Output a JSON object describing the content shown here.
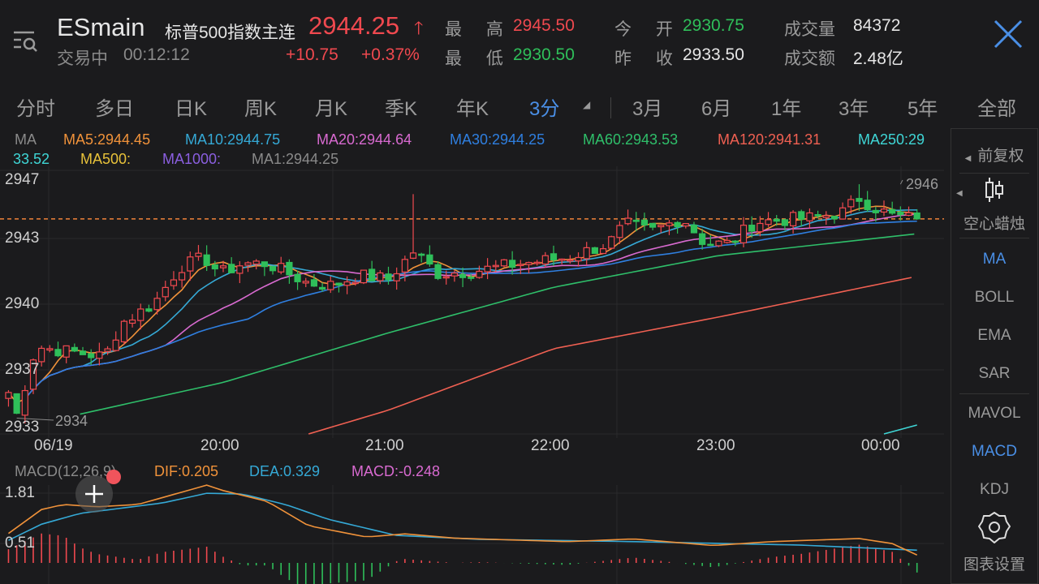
{
  "header": {
    "symbol": "ESmain",
    "name": "标普500指数主连",
    "status": "交易中",
    "time": "00:12:12",
    "price": "2944.25",
    "change": "+10.75",
    "change_pct": "+0.37%",
    "high_label": "最 高",
    "high": "2945.50",
    "low_label": "最 低",
    "low": "2930.50",
    "open_label": "今 开",
    "open": "2930.75",
    "prev_close_label": "昨 收",
    "prev_close": "2933.50",
    "volume_label": "成交量",
    "volume": "84372",
    "turnover_label": "成交额",
    "turnover": "2.48亿"
  },
  "tabs": [
    "分时",
    "多日",
    "日K",
    "周K",
    "月K",
    "季K",
    "年K",
    "3分",
    "3月",
    "6月",
    "1年",
    "3年",
    "5年",
    "全部"
  ],
  "active_tab": "3分",
  "ma_legend": {
    "title": "MA",
    "ma5": "MA5:2944.45",
    "ma10": "MA10:2944.75",
    "ma20": "MA20:2944.64",
    "ma30": "MA30:2944.25",
    "ma60": "MA60:2943.53",
    "ma120": "MA120:2941.31",
    "ma250_a": "MA250:29",
    "ma250_b": "33.52",
    "ma500": "MA500:",
    "ma1000": "MA1000:",
    "ma1": "MA1:2944.25"
  },
  "side_panel": {
    "adjust": "前复权",
    "candle_style": "空心蜡烛",
    "items": [
      "MA",
      "BOLL",
      "EMA",
      "SAR",
      "MAVOL",
      "MACD",
      "KDJ"
    ],
    "active": [
      "MA",
      "MACD"
    ],
    "settings": "图表设置"
  },
  "macd_legend": {
    "title": "MACD(12,26,9)",
    "dif": "DIF:0.205",
    "dea": "DEA:0.329",
    "macd": "MACD:-0.248"
  },
  "colors": {
    "up": "#f0494f",
    "down": "#2fbf5a",
    "ma5": "#f0923a",
    "ma10": "#35a9d6",
    "ma20": "#d86ad0",
    "ma30": "#2f7fe0",
    "ma60": "#2fbf6a",
    "ma120": "#f06052",
    "ma250": "#3fd6d6",
    "ma500": "#e8c23a",
    "ma1000": "#8b5fe0",
    "accent": "#4a8fe6"
  },
  "chart_data": [
    {
      "type": "candlestick",
      "interval": "3分",
      "y_tick_labels": [
        "2947",
        "2943",
        "2940",
        "2937",
        "2933"
      ],
      "x_tick_labels": [
        "06/19",
        "20:00",
        "21:00",
        "22:00",
        "23:00",
        "00:00"
      ],
      "ylim": [
        2933.4,
        2946.7
      ],
      "last_price_line": 2944.25,
      "max_label": "2946",
      "min_label": "2934",
      "start": "18:42",
      "end": "00:12",
      "close_path": [
        [
          "18:42",
          2935.5
        ],
        [
          "18:45",
          2934.4
        ],
        [
          "18:52",
          2937.8
        ],
        [
          "19:17",
          2937.3
        ],
        [
          "19:23",
          2939.0
        ],
        [
          "19:35",
          2940.0
        ],
        [
          "19:44",
          2941.8
        ],
        [
          "19:53",
          2942.3
        ],
        [
          "19:59",
          2941.5
        ],
        [
          "20:07",
          2942.0
        ],
        [
          "20:16",
          2942.0
        ],
        [
          "20:31",
          2941.0
        ],
        [
          "20:40",
          2940.9
        ],
        [
          "20:49",
          2941.4
        ],
        [
          "21:00",
          2941.2
        ],
        [
          "21:09",
          2942.6
        ],
        [
          "21:18",
          2941.5
        ],
        [
          "21:30",
          2941.6
        ],
        [
          "21:48",
          2942.0
        ],
        [
          "22:05",
          2942.3
        ],
        [
          "22:20",
          2943.0
        ],
        [
          "22:26",
          2944.0
        ],
        [
          "22:35",
          2943.6
        ],
        [
          "22:47",
          2944.3
        ],
        [
          "22:55",
          2943.0
        ],
        [
          "23:04",
          2943.0
        ],
        [
          "23:13",
          2944.1
        ],
        [
          "23:34",
          2944.3
        ],
        [
          "23:45",
          2944.6
        ],
        [
          "23:51",
          2945.3
        ],
        [
          "23:57",
          2944.8
        ],
        [
          "00:03",
          2944.4
        ],
        [
          "00:12",
          2944.25
        ]
      ],
      "wick_highs": [
        [
          "21:09",
          2945.5
        ],
        [
          "23:51",
          2946.0
        ]
      ],
      "ma60_path": [
        [
          "19:08",
          2934.4
        ],
        [
          "20:00",
          2936.0
        ],
        [
          "21:00",
          2938.5
        ],
        [
          "22:00",
          2940.8
        ],
        [
          "23:00",
          2942.4
        ],
        [
          "00:12",
          2943.5
        ]
      ],
      "ma120_path": [
        [
          "20:31",
          2933.4
        ],
        [
          "21:00",
          2934.6
        ],
        [
          "22:00",
          2937.7
        ],
        [
          "23:00",
          2939.3
        ],
        [
          "00:12",
          2941.35
        ]
      ],
      "ma250_path": [
        [
          "00:00",
          2933.4
        ],
        [
          "00:12",
          2933.85
        ]
      ]
    },
    {
      "type": "line",
      "indicator": "MACD(12,26,9)",
      "y_tick_labels": [
        "1.81",
        "0.51"
      ],
      "ylim": [
        -0.55,
        2.2
      ],
      "dif": [
        [
          "18:41",
          0.71
        ],
        [
          "18:54",
          1.38
        ],
        [
          "19:02",
          1.51
        ],
        [
          "19:14",
          1.45
        ],
        [
          "19:29",
          1.51
        ],
        [
          "19:47",
          1.87
        ],
        [
          "19:54",
          2.01
        ],
        [
          "20:00",
          1.87
        ],
        [
          "20:16",
          1.59
        ],
        [
          "20:31",
          0.96
        ],
        [
          "20:52",
          0.67
        ],
        [
          "21:06",
          0.75
        ],
        [
          "21:24",
          0.64
        ],
        [
          "21:42",
          0.6
        ],
        [
          "22:05",
          0.55
        ],
        [
          "22:29",
          0.62
        ],
        [
          "22:58",
          0.45
        ],
        [
          "23:19",
          0.55
        ],
        [
          "23:51",
          0.63
        ],
        [
          "00:03",
          0.5
        ],
        [
          "00:12",
          0.205
        ]
      ],
      "dea": [
        [
          "18:41",
          0.55
        ],
        [
          "18:54",
          1.0
        ],
        [
          "19:08",
          1.28
        ],
        [
          "19:38",
          1.55
        ],
        [
          "19:54",
          1.8
        ],
        [
          "20:07",
          1.78
        ],
        [
          "20:23",
          1.5
        ],
        [
          "20:38",
          1.13
        ],
        [
          "21:03",
          0.71
        ],
        [
          "21:33",
          0.61
        ],
        [
          "22:29",
          0.55
        ],
        [
          "23:30",
          0.46
        ],
        [
          "00:12",
          0.329
        ]
      ]
    }
  ]
}
